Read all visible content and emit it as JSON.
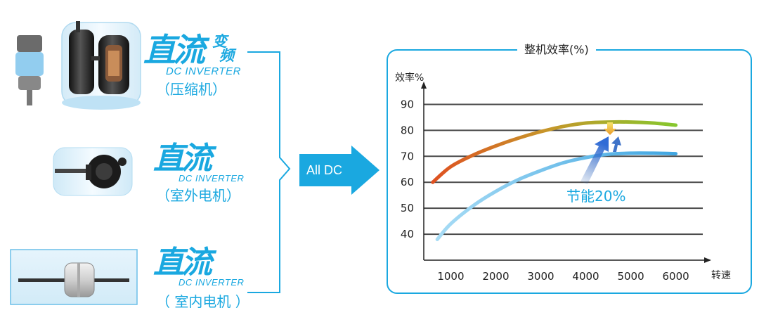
{
  "components": [
    {
      "logo_main": "直流",
      "logo_small_1": "变",
      "logo_small_2": "频",
      "logo_sub": "DC INVERTER",
      "caption": "（压缩机）"
    },
    {
      "logo_main": "直流",
      "logo_sub": "DC INVERTER",
      "caption": "（室外电机）"
    },
    {
      "logo_main": "直流",
      "logo_sub": "DC INVERTER",
      "caption": "（ 室内电机 ）"
    }
  ],
  "arrow_label": "All DC",
  "saving_label": "节能20%",
  "colors": {
    "accent": "#1aa8e0",
    "arrow": "#1aa8e0",
    "line_blue": "#5ab8e8"
  },
  "chart_data": {
    "type": "line",
    "title": "整机效率(%)",
    "ylabel": "效率%",
    "xlabel": "转速",
    "x_ticks": [
      1000,
      2000,
      3000,
      4000,
      5000,
      6000
    ],
    "y_ticks": [
      40,
      50,
      60,
      70,
      80,
      90
    ],
    "xlim": [
      400,
      6600
    ],
    "ylim": [
      30,
      95
    ],
    "grid": true,
    "series": [
      {
        "x": [
          600,
          1000,
          1500,
          2000,
          2500,
          3000,
          3500,
          4000,
          4500,
          5000,
          5500,
          6000
        ],
        "y": [
          60,
          66,
          70.5,
          74,
          77,
          79.5,
          81.5,
          82.8,
          83.2,
          83.2,
          82.8,
          82
        ]
      },
      {
        "x": [
          700,
          1000,
          1500,
          2000,
          2500,
          3000,
          3500,
          4000,
          4500,
          5000,
          5500,
          6000
        ],
        "y": [
          38,
          44,
          51,
          56.5,
          61,
          64.5,
          67.5,
          69.5,
          70.8,
          71.2,
          71.2,
          71
        ]
      }
    ]
  }
}
